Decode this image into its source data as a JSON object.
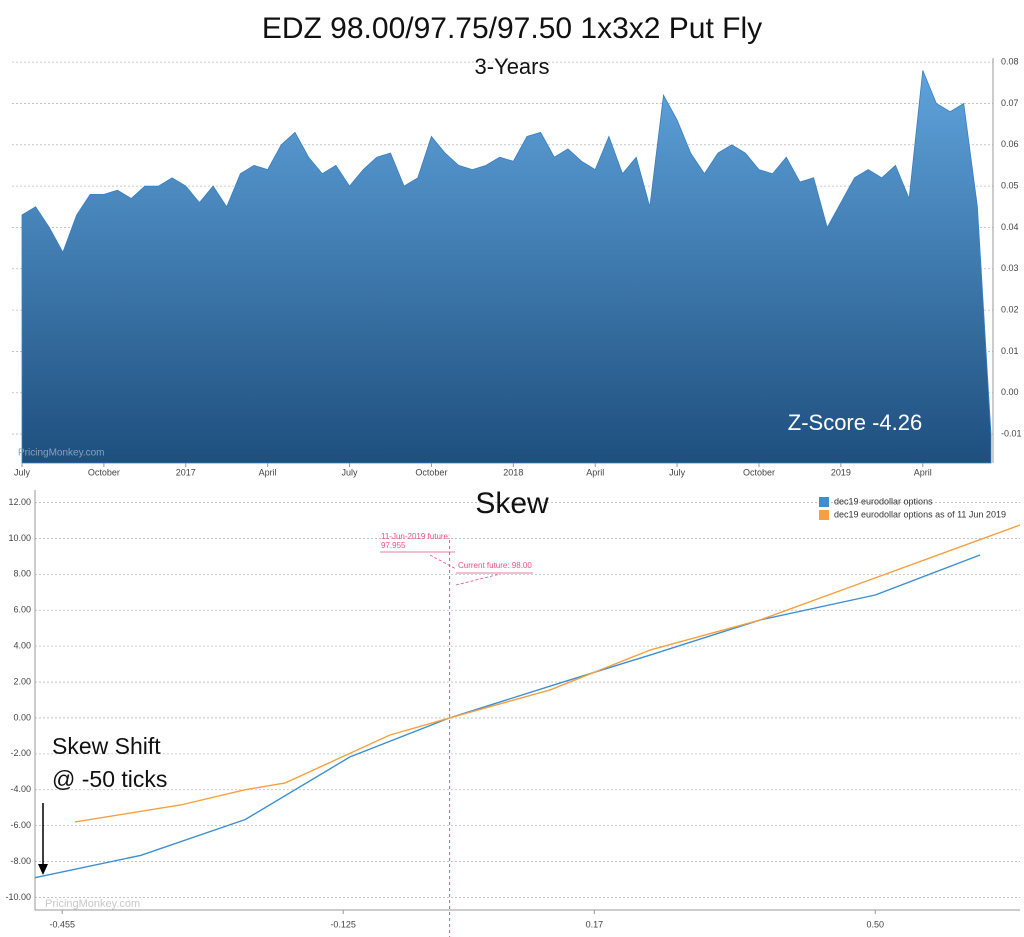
{
  "chart_data": [
    {
      "type": "area",
      "title": "EDZ 98.00/97.75/97.50 1x3x2 Put Fly",
      "subtitle": "3-Years",
      "annotation": "Z-Score -4.26",
      "watermark": "PricingMonkey.com",
      "color": "#3a7fbf",
      "categories": [
        "July",
        null,
        null,
        null,
        null,
        null,
        "October",
        null,
        null,
        null,
        null,
        null,
        "2017",
        null,
        null,
        null,
        null,
        null,
        "April",
        null,
        null,
        null,
        null,
        null,
        "July",
        null,
        null,
        null,
        null,
        null,
        "October",
        null,
        null,
        null,
        null,
        null,
        "2018",
        null,
        null,
        null,
        null,
        null,
        "April",
        null,
        null,
        null,
        null,
        null,
        "July",
        null,
        null,
        null,
        null,
        null,
        "October",
        null,
        null,
        null,
        null,
        null,
        "2019",
        null,
        null,
        null,
        null,
        null,
        "April",
        null,
        null,
        null,
        null,
        null
      ],
      "values": [
        0.043,
        0.045,
        0.04,
        0.034,
        0.043,
        0.048,
        0.048,
        0.049,
        0.047,
        0.05,
        0.05,
        0.052,
        0.05,
        0.046,
        0.05,
        0.045,
        0.053,
        0.055,
        0.054,
        0.06,
        0.063,
        0.057,
        0.053,
        0.055,
        0.05,
        0.054,
        0.057,
        0.058,
        0.05,
        0.052,
        0.062,
        0.058,
        0.055,
        0.054,
        0.055,
        0.057,
        0.056,
        0.062,
        0.063,
        0.057,
        0.059,
        0.056,
        0.054,
        0.062,
        0.053,
        0.057,
        0.045,
        0.072,
        0.066,
        0.058,
        0.053,
        0.058,
        0.06,
        0.058,
        0.054,
        0.053,
        0.057,
        0.051,
        0.052,
        0.04,
        0.046,
        0.052,
        0.054,
        0.052,
        0.055,
        0.047,
        0.078,
        0.07,
        0.068,
        0.07,
        0.045,
        -0.01
      ],
      "ylim": [
        -0.017,
        0.081
      ],
      "yticks": [
        -0.01,
        {
          "value": 0,
          "label": "0.00"
        },
        0.01,
        0.02,
        0.03,
        0.04,
        0.05,
        0.06,
        0.07,
        0.08
      ],
      "grid": true
    },
    {
      "type": "line",
      "title": "Skew",
      "watermark": "PricingMonkey.com",
      "annotations": [
        "11-Jun-2019 future:",
        "97.955",
        "Current future: 98.00",
        "Skew Shift",
        "@ -50 ticks"
      ],
      "vline": 0,
      "series": [
        {
          "name": "dec19 eurodollar options",
          "color": "#3d8fd1",
          "x": [
            -0.487,
            -0.363,
            -0.24,
            -0.117,
            0,
            0.13,
            0.236,
            0.365,
            0.5,
            0.623
          ],
          "values": [
            -8.9,
            -7.66,
            -5.66,
            -2.17,
            0,
            1.95,
            3.51,
            5.46,
            6.85,
            9.08
          ]
        },
        {
          "name": "dec19 eurodollar options as of 11 Jun 2019",
          "color": "#f5a040",
          "x": [
            -0.44,
            -0.316,
            -0.24,
            -0.193,
            -0.07,
            0,
            0.118,
            0.236,
            0.365,
            0.5,
            0.67
          ],
          "values": [
            -5.79,
            -4.85,
            -4.0,
            -3.62,
            -0.95,
            0,
            1.56,
            3.79,
            5.46,
            7.8,
            10.75
          ]
        }
      ],
      "xlim": [
        -0.487,
        0.67
      ],
      "xticks": [
        -0.455,
        -0.125,
        0.17,
        {
          "value": 0.5,
          "label": "0.50"
        }
      ],
      "ylim": [
        -10.7,
        12.7
      ],
      "yticks": [
        {
          "value": -10,
          "label": "-10.00"
        },
        {
          "value": -8,
          "label": "-8.00"
        },
        {
          "value": -6,
          "label": "-6.00"
        },
        {
          "value": -4,
          "label": "-4.00"
        },
        {
          "value": -2,
          "label": "-2.00"
        },
        {
          "value": 0,
          "label": "0.00"
        },
        {
          "value": 2,
          "label": "2.00"
        },
        {
          "value": 4,
          "label": "4.00"
        },
        {
          "value": 6,
          "label": "6.00"
        },
        {
          "value": 8,
          "label": "8.00"
        },
        {
          "value": 10,
          "label": "10.00"
        },
        {
          "value": 12,
          "label": "12.00"
        }
      ],
      "grid": true,
      "legend": "top-right"
    }
  ]
}
